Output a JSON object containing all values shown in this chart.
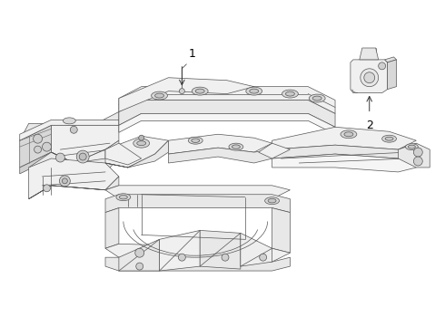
{
  "background_color": "#ffffff",
  "line_color": "#555555",
  "thin_line": 0.5,
  "med_line": 0.7,
  "fill_light": "#f5f5f5",
  "fill_mid": "#ebebeb",
  "fill_dark": "#dcdcdc",
  "label_1": "1",
  "label_2": "2",
  "figsize": [
    4.9,
    3.6
  ],
  "dpi": 100
}
